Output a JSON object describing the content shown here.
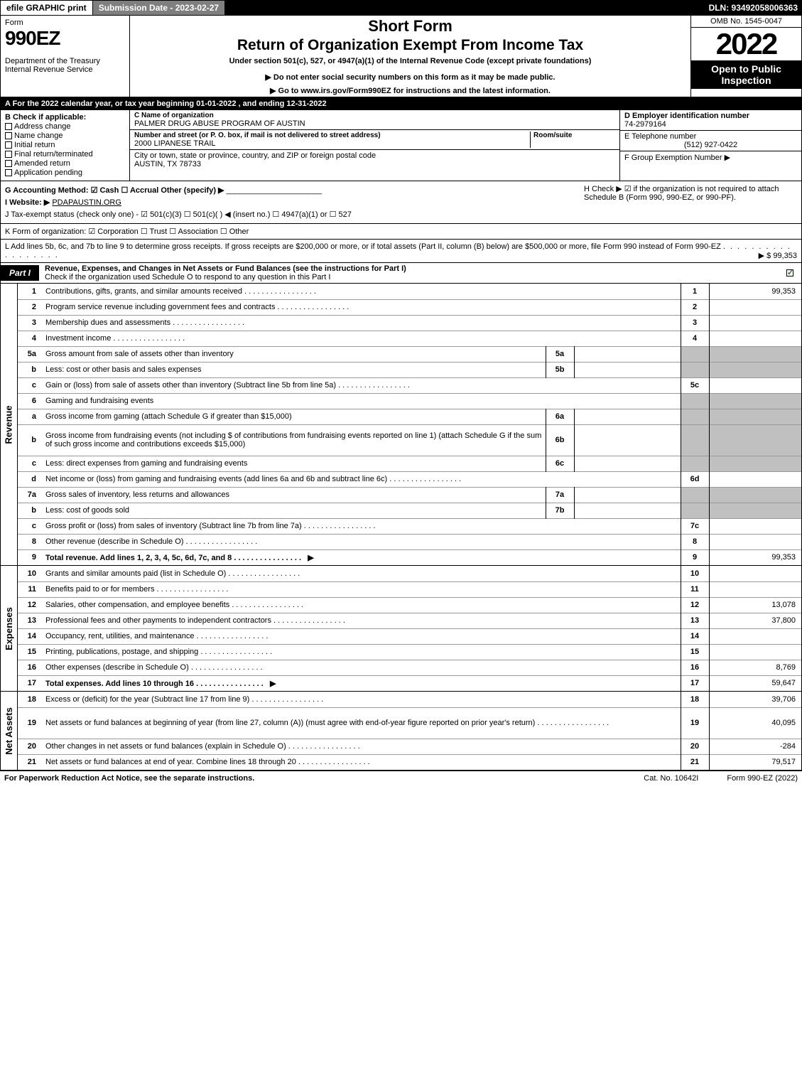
{
  "top": {
    "efile": "efile GRAPHIC print",
    "submission_label": "Submission Date - 2023-02-27",
    "dln": "DLN: 93492058006363"
  },
  "header": {
    "form_word": "Form",
    "form_number": "990EZ",
    "dept": "Department of the Treasury",
    "irs": "Internal Revenue Service",
    "short_form": "Short Form",
    "return_title": "Return of Organization Exempt From Income Tax",
    "under": "Under section 501(c), 527, or 4947(a)(1) of the Internal Revenue Code (except private foundations)",
    "ssn_note": "▶ Do not enter social security numbers on this form as it may be made public.",
    "goto": "▶ Go to www.irs.gov/Form990EZ for instructions and the latest information.",
    "omb": "OMB No. 1545-0047",
    "year": "2022",
    "open": "Open to Public Inspection"
  },
  "lineA": "A  For the 2022 calendar year, or tax year beginning 01-01-2022 , and ending 12-31-2022",
  "B": {
    "label": "B  Check if applicable:",
    "items": [
      "Address change",
      "Name change",
      "Initial return",
      "Final return/terminated",
      "Amended return",
      "Application pending"
    ]
  },
  "C": {
    "name_cap": "C Name of organization",
    "name_val": "PALMER DRUG ABUSE PROGRAM OF AUSTIN",
    "street_cap": "Number and street (or P. O. box, if mail is not delivered to street address)",
    "room_cap": "Room/suite",
    "street_val": "2000 LIPANESE TRAIL",
    "city_cap": "City or town, state or province, country, and ZIP or foreign postal code",
    "city_val": "AUSTIN, TX  78733"
  },
  "D": {
    "cap": "D Employer identification number",
    "val": "74-2979164"
  },
  "E": {
    "cap": "E Telephone number",
    "val": "(512) 927-0422"
  },
  "F": {
    "cap": "F Group Exemption Number  ▶"
  },
  "G": {
    "text": "G Accounting Method:  ☑ Cash  ☐ Accrual   Other (specify) ▶"
  },
  "H": {
    "text": "H  Check ▶ ☑ if the organization is not required to attach Schedule B (Form 990, 990-EZ, or 990-PF)."
  },
  "I": {
    "label": "I Website: ▶",
    "val": "PDAPAUSTIN.ORG"
  },
  "J": {
    "text": "J Tax-exempt status (check only one) - ☑ 501(c)(3) ☐ 501(c)(  ) ◀ (insert no.) ☐ 4947(a)(1) or ☐ 527"
  },
  "K": {
    "text": "K Form of organization:  ☑ Corporation  ☐ Trust  ☐ Association  ☐ Other"
  },
  "L": {
    "text": "L Add lines 5b, 6c, and 7b to line 9 to determine gross receipts. If gross receipts are $200,000 or more, or if total assets (Part II, column (B) below) are $500,000 or more, file Form 990 instead of Form 990-EZ",
    "amount": "▶ $ 99,353"
  },
  "part1": {
    "tag": "Part I",
    "title": "Revenue, Expenses, and Changes in Net Assets or Fund Balances (see the instructions for Part I)",
    "sub": "Check if the organization used Schedule O to respond to any question in this Part I",
    "checked": true
  },
  "revenue_rows": [
    {
      "ln": "1",
      "desc": "Contributions, gifts, grants, and similar amounts received",
      "n": "1",
      "v": "99,353"
    },
    {
      "ln": "2",
      "desc": "Program service revenue including government fees and contracts",
      "n": "2",
      "v": ""
    },
    {
      "ln": "3",
      "desc": "Membership dues and assessments",
      "n": "3",
      "v": ""
    },
    {
      "ln": "4",
      "desc": "Investment income",
      "n": "4",
      "v": ""
    },
    {
      "ln": "5a",
      "desc": "Gross amount from sale of assets other than inventory",
      "subn": "5a",
      "subv": "",
      "shade": true
    },
    {
      "ln": "b",
      "desc": "Less: cost or other basis and sales expenses",
      "subn": "5b",
      "subv": "",
      "shade": true
    },
    {
      "ln": "c",
      "desc": "Gain or (loss) from sale of assets other than inventory (Subtract line 5b from line 5a)",
      "n": "5c",
      "v": ""
    },
    {
      "ln": "6",
      "desc": "Gaming and fundraising events",
      "shade": true,
      "nosub": true
    },
    {
      "ln": "a",
      "desc": "Gross income from gaming (attach Schedule G if greater than $15,000)",
      "subn": "6a",
      "subv": "",
      "shade": true
    },
    {
      "ln": "b",
      "desc": "Gross income from fundraising events (not including $                    of contributions from fundraising events reported on line 1) (attach Schedule G if the sum of such gross income and contributions exceeds $15,000)",
      "subn": "6b",
      "subv": "",
      "shade": true,
      "tall": true
    },
    {
      "ln": "c",
      "desc": "Less: direct expenses from gaming and fundraising events",
      "subn": "6c",
      "subv": "",
      "shade": true
    },
    {
      "ln": "d",
      "desc": "Net income or (loss) from gaming and fundraising events (add lines 6a and 6b and subtract line 6c)",
      "n": "6d",
      "v": ""
    },
    {
      "ln": "7a",
      "desc": "Gross sales of inventory, less returns and allowances",
      "subn": "7a",
      "subv": "",
      "shade": true
    },
    {
      "ln": "b",
      "desc": "Less: cost of goods sold",
      "subn": "7b",
      "subv": "",
      "shade": true
    },
    {
      "ln": "c",
      "desc": "Gross profit or (loss) from sales of inventory (Subtract line 7b from line 7a)",
      "n": "7c",
      "v": ""
    },
    {
      "ln": "8",
      "desc": "Other revenue (describe in Schedule O)",
      "n": "8",
      "v": ""
    },
    {
      "ln": "9",
      "desc": "Total revenue. Add lines 1, 2, 3, 4, 5c, 6d, 7c, and 8",
      "n": "9",
      "v": "99,353",
      "bold": true,
      "arrow": true
    }
  ],
  "expense_rows": [
    {
      "ln": "10",
      "desc": "Grants and similar amounts paid (list in Schedule O)",
      "n": "10",
      "v": ""
    },
    {
      "ln": "11",
      "desc": "Benefits paid to or for members",
      "n": "11",
      "v": ""
    },
    {
      "ln": "12",
      "desc": "Salaries, other compensation, and employee benefits",
      "n": "12",
      "v": "13,078"
    },
    {
      "ln": "13",
      "desc": "Professional fees and other payments to independent contractors",
      "n": "13",
      "v": "37,800"
    },
    {
      "ln": "14",
      "desc": "Occupancy, rent, utilities, and maintenance",
      "n": "14",
      "v": ""
    },
    {
      "ln": "15",
      "desc": "Printing, publications, postage, and shipping",
      "n": "15",
      "v": ""
    },
    {
      "ln": "16",
      "desc": "Other expenses (describe in Schedule O)",
      "n": "16",
      "v": "8,769"
    },
    {
      "ln": "17",
      "desc": "Total expenses. Add lines 10 through 16",
      "n": "17",
      "v": "59,647",
      "bold": true,
      "arrow": true
    }
  ],
  "netassets_rows": [
    {
      "ln": "18",
      "desc": "Excess or (deficit) for the year (Subtract line 17 from line 9)",
      "n": "18",
      "v": "39,706"
    },
    {
      "ln": "19",
      "desc": "Net assets or fund balances at beginning of year (from line 27, column (A)) (must agree with end-of-year figure reported on prior year's return)",
      "n": "19",
      "v": "40,095",
      "tall": true
    },
    {
      "ln": "20",
      "desc": "Other changes in net assets or fund balances (explain in Schedule O)",
      "n": "20",
      "v": "-284"
    },
    {
      "ln": "21",
      "desc": "Net assets or fund balances at end of year. Combine lines 18 through 20",
      "n": "21",
      "v": "79,517"
    }
  ],
  "vlabels": {
    "rev": "Revenue",
    "exp": "Expenses",
    "na": "Net Assets"
  },
  "footer": {
    "left": "For Paperwork Reduction Act Notice, see the separate instructions.",
    "center": "Cat. No. 10642I",
    "right": "Form 990-EZ (2022)"
  }
}
